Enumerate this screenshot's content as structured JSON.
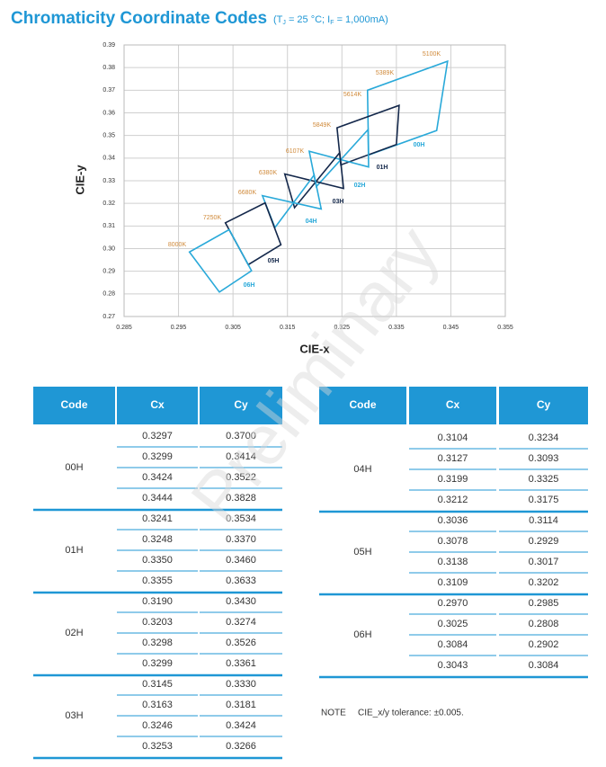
{
  "header": {
    "title": "Chromaticity Coordinate Codes",
    "subtitle_parts": [
      "(T",
      "J",
      " = 25 °C; I",
      "F",
      " = 1,000mA)"
    ]
  },
  "chart": {
    "type": "polygon",
    "x_label": "CIE-x",
    "y_label": "CIE-y",
    "xlim": [
      0.285,
      0.355
    ],
    "xticks": [
      0.285,
      0.295,
      0.305,
      0.315,
      0.325,
      0.335,
      0.345,
      0.355
    ],
    "ylim": [
      0.27,
      0.39
    ],
    "yticks": [
      0.27,
      0.28,
      0.29,
      {
        "value": 0.3,
        "label": "0.30"
      },
      0.31,
      0.32,
      0.33,
      0.34,
      0.35,
      0.36,
      0.37,
      0.38,
      0.39
    ],
    "grid": true,
    "colors": [
      "#29a9d9",
      "#14284b"
    ],
    "cct_labels": [
      "5100K",
      "5389K",
      "5614K",
      "5849K",
      "6107K",
      "6380K",
      "6680K",
      "7250K",
      "8000K"
    ],
    "cct_color": "#d08a3a"
  },
  "tables": [
    {
      "header": [
        "Code",
        "Cx",
        "Cy"
      ],
      "groups": [
        {
          "code": "00H",
          "rows": [
            [
              "0.3297",
              "0.3700"
            ],
            [
              "0.3299",
              "0.3414"
            ],
            [
              "0.3424",
              "0.3522"
            ],
            [
              "0.3444",
              "0.3828"
            ]
          ]
        },
        {
          "code": "01H",
          "rows": [
            [
              "0.3241",
              "0.3534"
            ],
            [
              "0.3248",
              "0.3370"
            ],
            [
              "0.3350",
              "0.3460"
            ],
            [
              "0.3355",
              "0.3633"
            ]
          ]
        },
        {
          "code": "02H",
          "rows": [
            [
              "0.3190",
              "0.3430"
            ],
            [
              "0.3203",
              "0.3274"
            ],
            [
              "0.3298",
              "0.3526"
            ],
            [
              "0.3299",
              "0.3361"
            ]
          ]
        },
        {
          "code": "03H",
          "rows": [
            [
              "0.3145",
              "0.3330"
            ],
            [
              "0.3163",
              "0.3181"
            ],
            [
              "0.3246",
              "0.3424"
            ],
            [
              "0.3253",
              "0.3266"
            ]
          ]
        }
      ]
    },
    {
      "header": [
        "Code",
        "Cx",
        "Cy"
      ],
      "groups": [
        {
          "code": "04H",
          "rows": [
            [
              "0.3104",
              "0.3234"
            ],
            [
              "0.3127",
              "0.3093"
            ],
            [
              "0.3199",
              "0.3325"
            ],
            [
              "0.3212",
              "0.3175"
            ]
          ]
        },
        {
          "code": "05H",
          "rows": [
            [
              "0.3036",
              "0.3114"
            ],
            [
              "0.3078",
              "0.2929"
            ],
            [
              "0.3138",
              "0.3017"
            ],
            [
              "0.3109",
              "0.3202"
            ]
          ]
        },
        {
          "code": "06H",
          "rows": [
            [
              "0.2970",
              "0.2985"
            ],
            [
              "0.3025",
              "0.2808"
            ],
            [
              "0.3084",
              "0.2902"
            ],
            [
              "0.3043",
              "0.3084"
            ]
          ]
        }
      ]
    }
  ],
  "note": {
    "label": "NOTE",
    "text": "CIE_x/y tolerance: ±0.005."
  },
  "watermark": "Preliminary"
}
